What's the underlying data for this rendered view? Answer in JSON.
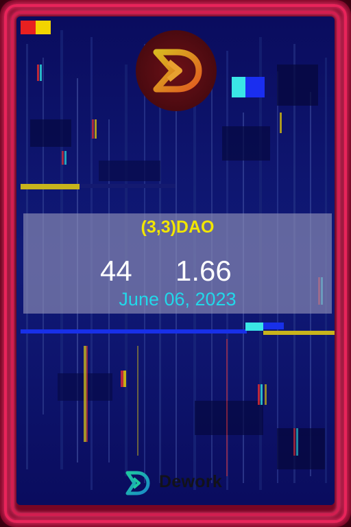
{
  "card": {
    "token_name": "(3,3)DAO",
    "count": "44",
    "value": "1.66",
    "date": "June 06, 2023"
  },
  "brand": {
    "name": "Dework",
    "icon": "dework-logo-icon"
  },
  "logo": {
    "icon": "d-arrow-logo-icon"
  },
  "colors": {
    "frame": "#7a0625",
    "border": "#e8245a",
    "background": "#0b0f6a",
    "token_name": "#f1e600",
    "stats": "#ffffff",
    "date": "#22d8ea"
  }
}
